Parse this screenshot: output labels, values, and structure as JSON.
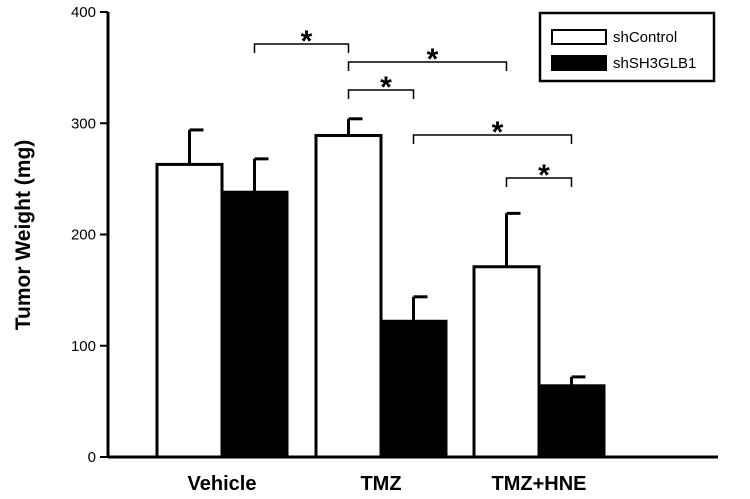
{
  "chart_data": {
    "type": "bar",
    "title": "",
    "xlabel": "",
    "ylabel": "Tumor Weight (mg)",
    "ylim": [
      0,
      400
    ],
    "yticks": [
      0,
      100,
      200,
      300,
      400
    ],
    "categories": [
      "Vehicle",
      "TMZ",
      "TMZ+HNE"
    ],
    "series": [
      {
        "name": "shControl",
        "fill": "#ffffff",
        "values": [
          263,
          289,
          171
        ],
        "errors": [
          31,
          15,
          48
        ]
      },
      {
        "name": "shSH3GLB1",
        "fill": "#000000",
        "values": [
          238,
          122,
          64
        ],
        "errors": [
          30,
          22,
          8
        ]
      }
    ],
    "legend": {
      "position": "top-right"
    },
    "grid": false,
    "significance": [
      {
        "from": {
          "category": 0,
          "series": 1
        },
        "to": {
          "category": 1,
          "series": 0
        },
        "label": "*"
      },
      {
        "from": {
          "category": 1,
          "series": 0
        },
        "to": {
          "category": 2,
          "series": 0
        },
        "label": "*"
      },
      {
        "from": {
          "category": 1,
          "series": 0
        },
        "to": {
          "category": 1,
          "series": 1
        },
        "label": "*"
      },
      {
        "from": {
          "category": 1,
          "series": 1
        },
        "to": {
          "category": 2,
          "series": 1
        },
        "label": "*"
      },
      {
        "from": {
          "category": 2,
          "series": 0
        },
        "to": {
          "category": 2,
          "series": 1
        },
        "label": "*"
      }
    ]
  }
}
